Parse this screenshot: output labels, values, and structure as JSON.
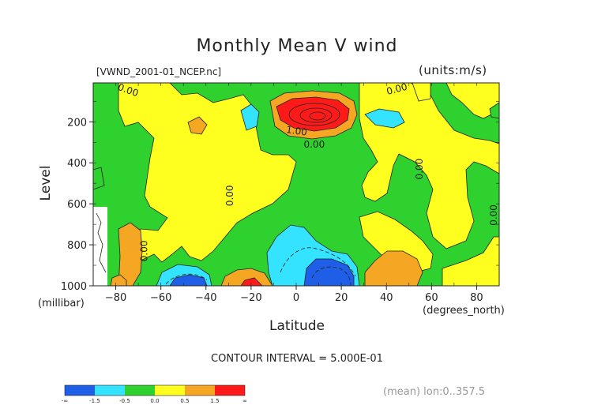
{
  "chart_data": {
    "type": "heatmap",
    "title": "Monthly Mean V wind",
    "dataset_label": "[VWND_2001-01_NCEP.nc]",
    "units_label": "(units:m/s)",
    "xlabel": "Latitude",
    "xunit": "(degrees_north)",
    "ylabel": "Level",
    "yunit": "(millibar)",
    "xlim": [
      -90,
      90
    ],
    "ylim": [
      1000,
      10
    ],
    "y_reversed": true,
    "x_ticks": [
      -80,
      -60,
      -40,
      -20,
      0,
      20,
      40,
      60,
      80
    ],
    "y_ticks": [
      200,
      400,
      600,
      800,
      1000
    ],
    "contour_interval_label": "CONTOUR INTERVAL = 5.000E-01",
    "averaging_label": "(mean) lon:0..357.5",
    "contour_labels": [
      {
        "text": "0.00",
        "x": -75,
        "y": 60
      },
      {
        "text": "1.00",
        "x": 0,
        "y": 260
      },
      {
        "text": "0.00",
        "x": 8,
        "y": 325
      },
      {
        "text": "0.00",
        "x": 45,
        "y": 55
      },
      {
        "text": "0.00",
        "x": 56,
        "y": 430
      },
      {
        "text": "0.00",
        "x": -28,
        "y": 560
      },
      {
        "text": "0.00",
        "x": -66,
        "y": 830
      },
      {
        "text": "0.00",
        "x": 89,
        "y": 655
      }
    ],
    "color_levels": [
      {
        "label": "-∞",
        "color": "#1f5fe8"
      },
      {
        "label": "-1.5",
        "color": "#34e3ff"
      },
      {
        "label": "-0.5",
        "color": "#2ed12e"
      },
      {
        "label": "0.0",
        "color": "#ffff1f"
      },
      {
        "label": "0.5",
        "color": "#f5a623"
      },
      {
        "label": "1.5",
        "color": "#ff1a1a"
      },
      {
        "label": "∞",
        "color": ""
      }
    ],
    "colorbar_ticks": [
      "-∞",
      "-1.5",
      "-0.5",
      "0.0",
      "0.5",
      "1.5",
      "∞"
    ],
    "regions": [
      {
        "name": "yellow-west",
        "color": "#ffff1f"
      },
      {
        "name": "red-jet",
        "color": "#ff1a1a",
        "center": [
          8,
          190
        ],
        "value_max": 2.5
      },
      {
        "name": "blue-south",
        "color": "#1f5fe8",
        "center": [
          -50,
          980
        ],
        "value_min": -2.0
      },
      {
        "name": "blue-north",
        "color": "#1f5fe8",
        "center": [
          12,
          930
        ],
        "value_min": -2.0
      },
      {
        "name": "red-low",
        "color": "#ff1a1a",
        "center": [
          -20,
          990
        ],
        "value_max": 2.0
      }
    ]
  }
}
